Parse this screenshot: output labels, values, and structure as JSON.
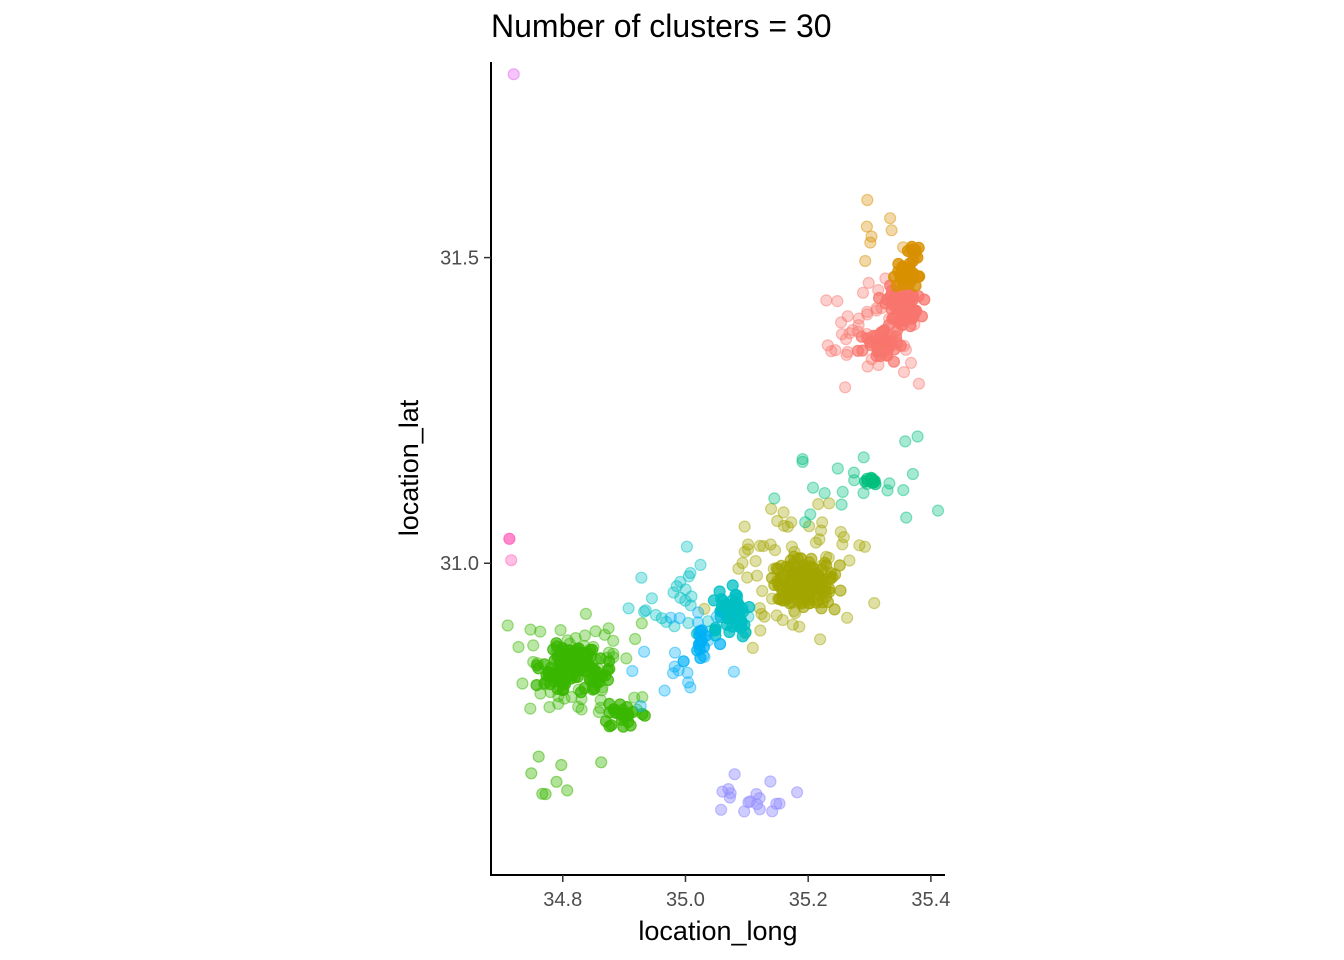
{
  "chart_data": {
    "type": "scatter",
    "title": "Number of clusters = 30",
    "xlabel": "location_long",
    "ylabel": "location_lat",
    "xlim": [
      34.683,
      35.423
    ],
    "ylim": [
      30.49,
      31.82
    ],
    "xticks": [
      "34.8",
      "35.0",
      "35.2",
      "35.4"
    ],
    "yticks": [
      "31.0",
      "31.5"
    ],
    "grid": false,
    "legend": "none",
    "point_alpha": "varies by cluster (light = 0.35, dense clusters darker)",
    "clusters": [
      {
        "color": "#F8766D",
        "center": [
          35.355,
          31.42
        ],
        "spread": [
          0.015,
          0.015
        ],
        "n": 70,
        "alpha": 0.75
      },
      {
        "color": "#F8766D",
        "center": [
          35.32,
          31.36
        ],
        "spread": [
          0.015,
          0.012
        ],
        "n": 45,
        "alpha": 0.7
      },
      {
        "color": "#F8766D",
        "center": [
          35.31,
          31.38
        ],
        "spread": [
          0.045,
          0.04
        ],
        "n": 45,
        "alpha": 0.35
      },
      {
        "color": "#D89000",
        "center": [
          35.36,
          31.47
        ],
        "spread": [
          0.01,
          0.01
        ],
        "n": 30,
        "alpha": 0.8
      },
      {
        "color": "#D89000",
        "center": [
          35.375,
          31.51
        ],
        "spread": [
          0.005,
          0.004
        ],
        "n": 10,
        "alpha": 0.8
      },
      {
        "color": "#D89000",
        "center": [
          35.34,
          31.53
        ],
        "spread": [
          0.03,
          0.025
        ],
        "n": 10,
        "alpha": 0.35
      },
      {
        "color": "#A3A500",
        "center": [
          35.19,
          30.965
        ],
        "spread": [
          0.025,
          0.02
        ],
        "n": 160,
        "alpha": 0.6
      },
      {
        "color": "#A3A500",
        "center": [
          35.17,
          30.99
        ],
        "spread": [
          0.06,
          0.055
        ],
        "n": 70,
        "alpha": 0.35
      },
      {
        "color": "#39B600",
        "center": [
          34.82,
          30.83
        ],
        "spread": [
          0.025,
          0.022
        ],
        "n": 110,
        "alpha": 0.7
      },
      {
        "color": "#39B600",
        "center": [
          34.83,
          30.82
        ],
        "spread": [
          0.06,
          0.05
        ],
        "n": 60,
        "alpha": 0.35
      },
      {
        "color": "#39B600",
        "center": [
          34.9,
          30.75
        ],
        "spread": [
          0.018,
          0.012
        ],
        "n": 25,
        "alpha": 0.7
      },
      {
        "color": "#39B600",
        "center": [
          34.8,
          30.65
        ],
        "spread": [
          0.04,
          0.02
        ],
        "n": 8,
        "alpha": 0.4
      },
      {
        "color": "#00BF7D",
        "center": [
          35.28,
          31.14
        ],
        "spread": [
          0.07,
          0.04
        ],
        "n": 26,
        "alpha": 0.35
      },
      {
        "color": "#00BF7D",
        "center": [
          35.3,
          31.135
        ],
        "spread": [
          0.02,
          0.005
        ],
        "n": 10,
        "alpha": 0.6
      },
      {
        "color": "#00BFC4",
        "center": [
          35.075,
          30.92
        ],
        "spread": [
          0.015,
          0.015
        ],
        "n": 70,
        "alpha": 0.75
      },
      {
        "color": "#00BFC4",
        "center": [
          35.0,
          30.93
        ],
        "spread": [
          0.05,
          0.04
        ],
        "n": 30,
        "alpha": 0.35
      },
      {
        "color": "#00B0F6",
        "center": [
          35.03,
          30.87
        ],
        "spread": [
          0.015,
          0.02
        ],
        "n": 14,
        "alpha": 0.7
      },
      {
        "color": "#00B0F6",
        "center": [
          35.0,
          30.83
        ],
        "spread": [
          0.04,
          0.05
        ],
        "n": 20,
        "alpha": 0.35
      },
      {
        "color": "#9590FF",
        "center": [
          35.12,
          30.625
        ],
        "spread": [
          0.03,
          0.015
        ],
        "n": 18,
        "alpha": 0.45
      },
      {
        "color": "#E76BF3",
        "center": [
          34.72,
          31.8
        ],
        "spread": [
          0.0,
          0.0
        ],
        "n": 1,
        "alpha": 0.4
      },
      {
        "color": "#FF62BC",
        "center": [
          34.713,
          31.04
        ],
        "spread": [
          0.0,
          0.0
        ],
        "n": 1,
        "alpha": 0.75
      },
      {
        "color": "#FF62BC",
        "center": [
          34.716,
          31.005
        ],
        "spread": [
          0.0,
          0.0
        ],
        "n": 1,
        "alpha": 0.4
      }
    ]
  }
}
